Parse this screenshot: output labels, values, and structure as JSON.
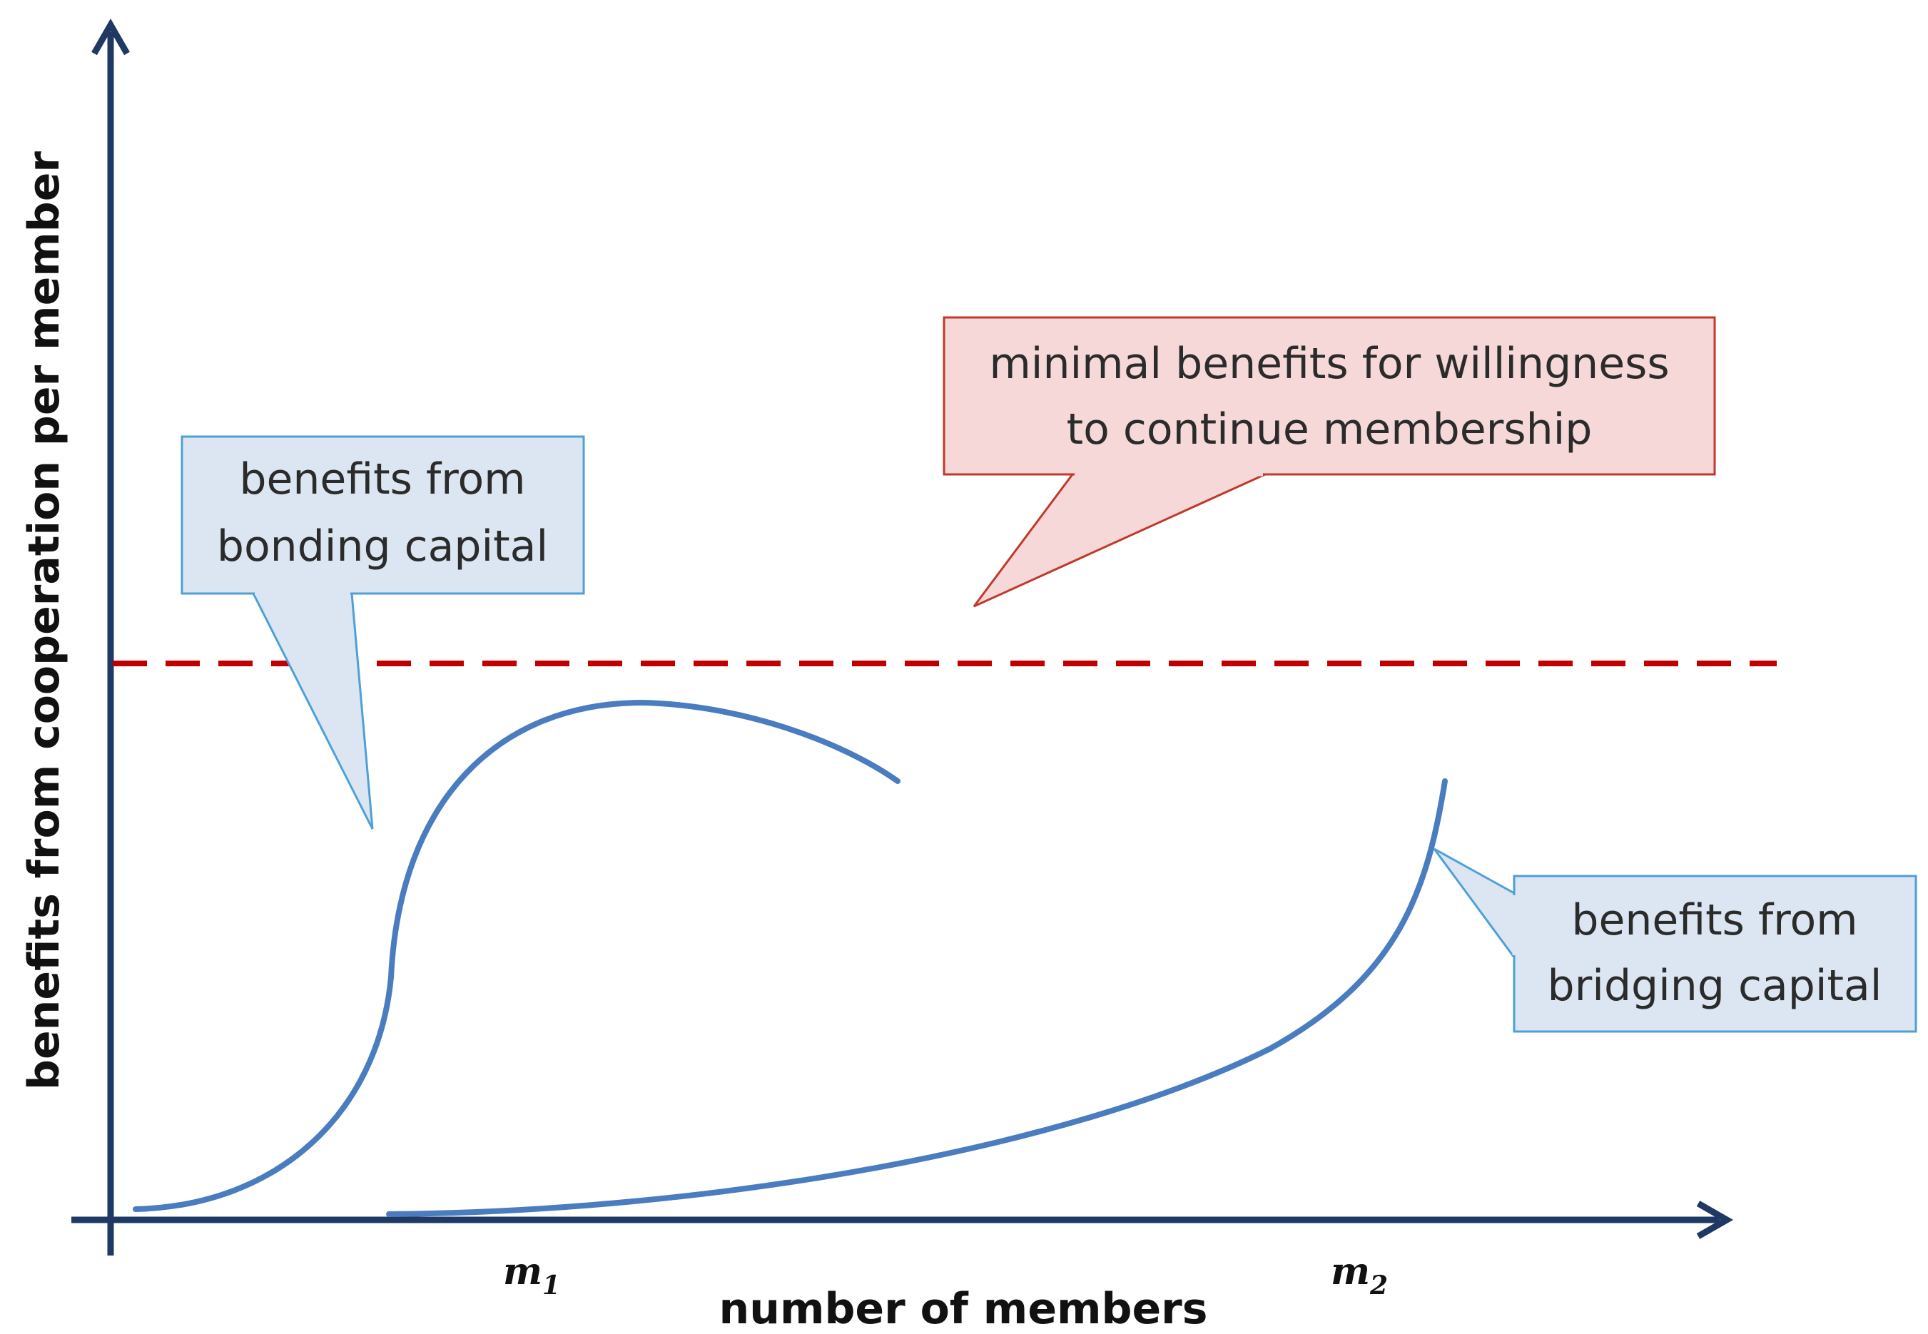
{
  "axes": {
    "y_label": "benefits from cooperation per member",
    "x_label": "number of members",
    "tick_m1": {
      "base": "m",
      "sub": "1"
    },
    "tick_m2": {
      "base": "m",
      "sub": "2"
    }
  },
  "callouts": {
    "bonding": {
      "lines": [
        "benefits from",
        "bonding capital"
      ]
    },
    "minimal": {
      "lines": [
        "minimal benefits for willingness",
        "to continue membership"
      ]
    },
    "bridging": {
      "lines": [
        "benefits from",
        "bridging capital"
      ]
    }
  },
  "colors": {
    "axis": "#1f3864",
    "curve": "#4a7cc0",
    "threshold": "#c00000",
    "blue_box_fill": "#dce6f2",
    "blue_box_stroke": "#4f9fd8",
    "red_box_fill": "#f6d8d8",
    "red_box_stroke": "#c0392b"
  }
}
